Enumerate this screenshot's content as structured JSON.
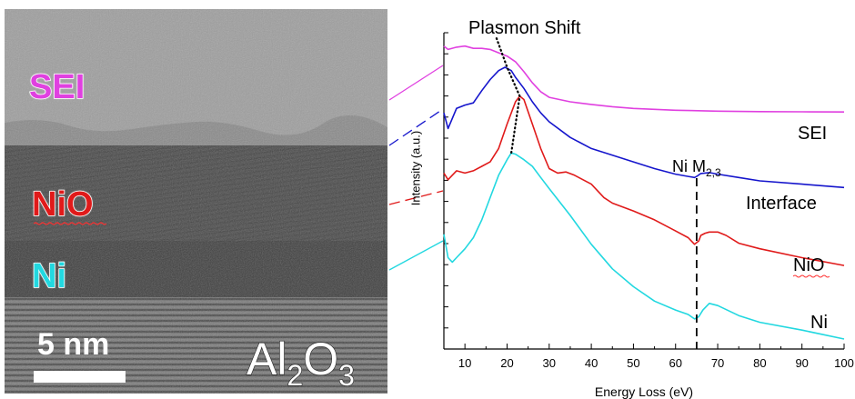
{
  "tem_image": {
    "layers": [
      {
        "key": "sei",
        "label": "SEI",
        "color": "#e040e0"
      },
      {
        "key": "nio",
        "label": "NiO",
        "color": "#e01a1a"
      },
      {
        "key": "ni",
        "label": "Ni",
        "color": "#22d8e0"
      }
    ],
    "scale_bar": {
      "label": "5 nm",
      "value_nm": 5
    },
    "substrate": {
      "base": "Al",
      "sub1": "2",
      "mid": "O",
      "sub2": "3"
    }
  },
  "chart_data": {
    "type": "line",
    "title": "Plasmon Shift",
    "xlabel": "Energy Loss (eV)",
    "ylabel": "Intensity (a.u.)",
    "xlim": [
      5,
      100
    ],
    "x_ticks": [
      10,
      20,
      30,
      40,
      50,
      60,
      70,
      80,
      90,
      100
    ],
    "y_ticks_labeled": false,
    "grid": false,
    "legend": "none",
    "series": [
      {
        "name": "SEI",
        "color": "#e040e0",
        "x": [
          5,
          6,
          8,
          10,
          12,
          14,
          16,
          18,
          20,
          22,
          24,
          26,
          28,
          30,
          35,
          40,
          45,
          50,
          60,
          70,
          80,
          90,
          100
        ],
        "y": [
          9.4,
          9.25,
          9.35,
          9.4,
          9.3,
          9.3,
          9.25,
          9.1,
          8.95,
          8.7,
          8.25,
          7.75,
          7.35,
          7.1,
          6.9,
          6.78,
          6.68,
          6.6,
          6.52,
          6.48,
          6.46,
          6.45,
          6.44
        ]
      },
      {
        "name": "Interface",
        "color": "#1515cc",
        "x": [
          5,
          6,
          8,
          10,
          12,
          14,
          16,
          18,
          19.5,
          21,
          22,
          24,
          26,
          28,
          30,
          35,
          40,
          45,
          50,
          55,
          60,
          63,
          64.5,
          65,
          66,
          68,
          70,
          75,
          80,
          90,
          100
        ],
        "y": [
          6.4,
          5.7,
          6.6,
          6.75,
          6.85,
          7.4,
          7.9,
          8.3,
          8.45,
          8.3,
          8.0,
          7.5,
          6.9,
          6.4,
          6.0,
          5.3,
          4.8,
          4.5,
          4.2,
          3.9,
          3.65,
          3.55,
          3.5,
          3.55,
          3.68,
          3.72,
          3.65,
          3.5,
          3.35,
          3.2,
          3.05
        ]
      },
      {
        "name": "NiO",
        "color": "#e01a1a",
        "x": [
          5,
          6,
          8,
          10,
          12,
          14,
          16,
          18,
          20,
          22,
          23,
          24,
          26,
          28,
          30,
          32,
          34,
          36,
          40,
          43,
          45,
          50,
          55,
          60,
          63,
          64.5,
          65.5,
          66,
          67,
          68,
          70,
          72,
          75,
          80,
          90,
          100
        ],
        "y": [
          3.7,
          3.4,
          3.8,
          3.7,
          3.8,
          4.0,
          4.2,
          4.8,
          5.9,
          6.9,
          7.15,
          7.0,
          5.9,
          4.8,
          3.9,
          3.7,
          3.75,
          3.6,
          3.2,
          2.6,
          2.35,
          2.0,
          1.6,
          1.1,
          0.8,
          0.5,
          0.65,
          0.9,
          1.0,
          1.05,
          1.05,
          0.9,
          0.55,
          0.3,
          -0.1,
          -0.45
        ]
      },
      {
        "name": "Ni",
        "color": "#22d8e0",
        "x": [
          5,
          6,
          7,
          8,
          10,
          12,
          14,
          16,
          18,
          20,
          21,
          22,
          24,
          26,
          28,
          30,
          35,
          40,
          45,
          50,
          55,
          60,
          63,
          64.5,
          65.5,
          66.5,
          68,
          70,
          75,
          80,
          90,
          100
        ],
        "y": [
          0.95,
          -0.1,
          -0.3,
          -0.1,
          0.3,
          0.8,
          1.6,
          2.6,
          3.6,
          4.3,
          4.6,
          4.55,
          4.3,
          4.0,
          3.5,
          3.0,
          1.8,
          0.5,
          -0.6,
          -1.4,
          -2.05,
          -2.45,
          -2.65,
          -2.85,
          -2.75,
          -2.45,
          -2.15,
          -2.25,
          -2.7,
          -3.0,
          -3.35,
          -3.75
        ]
      }
    ],
    "annotations": [
      {
        "text": "Plasmon Shift",
        "type": "dotted-trend",
        "x": [
          17.5,
          20,
          23,
          21
        ],
        "y": [
          9.75,
          8.45,
          7.15,
          4.6
        ]
      },
      {
        "type": "dashed-vertical",
        "x": 65,
        "label_base": "Ni M",
        "label_sub": "2,3"
      }
    ],
    "series_labels": [
      {
        "key": "sei",
        "text": "SEI"
      },
      {
        "key": "interface",
        "text": "Interface"
      },
      {
        "key": "nio",
        "text": "NiO"
      },
      {
        "key": "ni",
        "text": "Ni"
      }
    ]
  }
}
